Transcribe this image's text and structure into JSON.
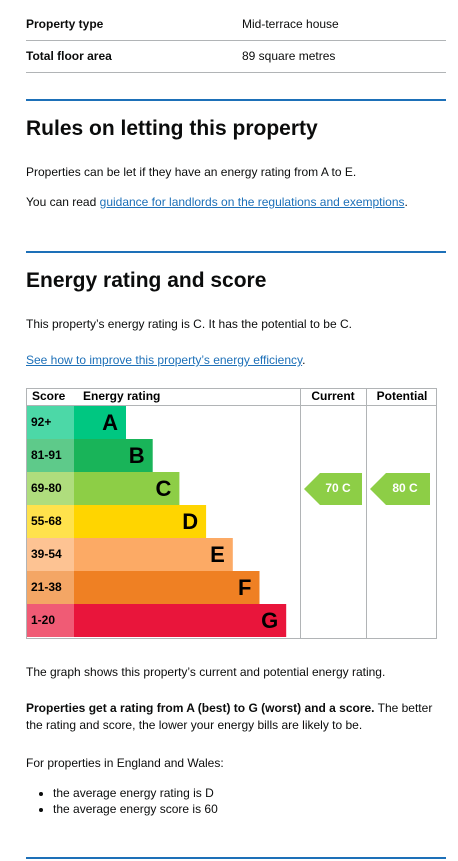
{
  "summary": {
    "rows": [
      [
        "Property type",
        "Mid-terrace house"
      ],
      [
        "Total floor area",
        "89 square metres"
      ]
    ]
  },
  "letting": {
    "heading": "Rules on letting this property",
    "para1": "Properties can be let if they have an energy rating from A to E.",
    "para2_before": "You can read",
    "para2_link": "guidance for landlords on the regulations and exemptions",
    "para2_after": "."
  },
  "energy": {
    "heading": "Energy rating and score",
    "para1": "This property’s energy rating is C. It has the potential to be C.",
    "link": "See how to improve this property’s energy efficiency",
    "link_after": ".",
    "graph": {
      "headers": [
        "Score",
        "Energy rating",
        "Current",
        "Potential"
      ],
      "rows": [
        {
          "score": "92+",
          "band": "A"
        },
        {
          "score": "81-91",
          "band": "B"
        },
        {
          "score": "69-80",
          "band": "C"
        },
        {
          "score": "55-68",
          "band": "D"
        },
        {
          "score": "39-54",
          "band": "E"
        },
        {
          "score": "21-38",
          "band": "F"
        },
        {
          "score": "1-20",
          "band": "G"
        }
      ],
      "current": "70 C",
      "potential": "80 C"
    },
    "caption": "The graph shows this property’s current and potential energy rating.",
    "para2_bold": "Properties get a rating from A (best) to G (worst) and a score.",
    "para2_rest": " The better the rating and score, the lower your energy bills are likely to be.",
    "para3": "For properties in England and Wales:",
    "bullets": [
      "the average energy rating is D",
      "the average energy score is 60"
    ]
  }
}
